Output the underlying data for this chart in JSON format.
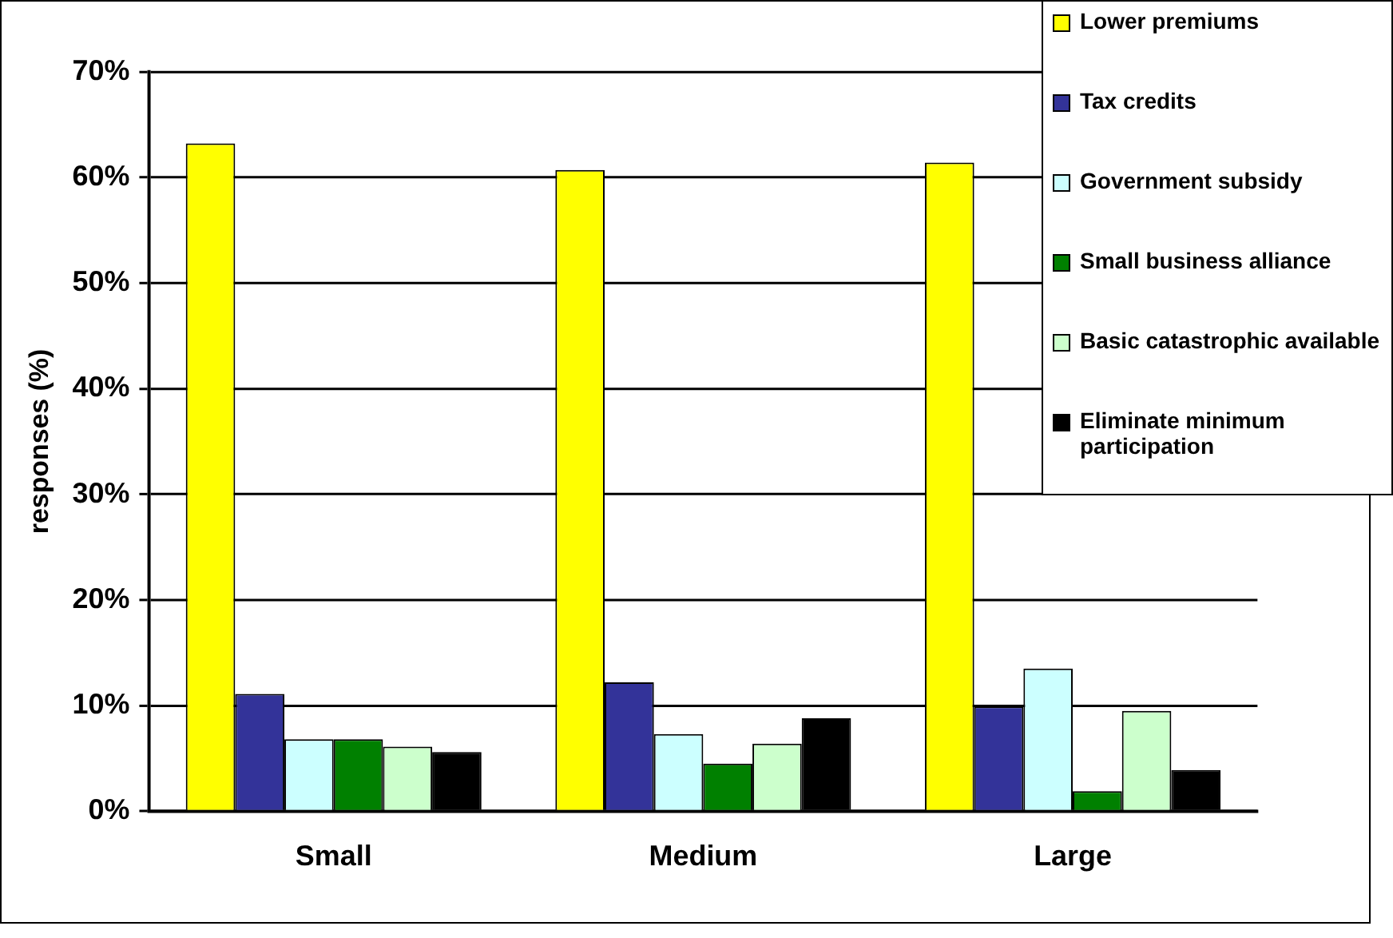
{
  "chart_data": {
    "type": "bar",
    "ylabel": "responses (%)",
    "categories": [
      "Small",
      "Medium",
      "Large"
    ],
    "series": [
      {
        "name": "Lower premiums",
        "color": "#ffff00",
        "values": [
          63.2,
          60.7,
          61.4
        ]
      },
      {
        "name": "Tax credits",
        "color": "#333399",
        "values": [
          11.1,
          12.2,
          9.9
        ]
      },
      {
        "name": "Government subsidy",
        "color": "#ccffff",
        "values": [
          6.8,
          7.3,
          13.5
        ]
      },
      {
        "name": "Small business alliance",
        "color": "#008000",
        "values": [
          6.8,
          4.5,
          1.9
        ]
      },
      {
        "name": "Basic catastrophic available",
        "color": "#ccffcc",
        "values": [
          6.1,
          6.4,
          9.5
        ]
      },
      {
        "name": "Eliminate minimum participation",
        "color": "#000000",
        "values": [
          5.6,
          8.8,
          3.9
        ]
      }
    ],
    "ylim": [
      0,
      70
    ],
    "yticks": [
      {
        "value": 0,
        "label": "0%"
      },
      {
        "value": 10,
        "label": "10%"
      },
      {
        "value": 20,
        "label": "20%"
      },
      {
        "value": 30,
        "label": "30%"
      },
      {
        "value": 40,
        "label": "40%"
      },
      {
        "value": 50,
        "label": "50%"
      },
      {
        "value": 60,
        "label": "60%"
      },
      {
        "value": 70,
        "label": "70%"
      }
    ],
    "grid": "y",
    "legend": "top right"
  }
}
